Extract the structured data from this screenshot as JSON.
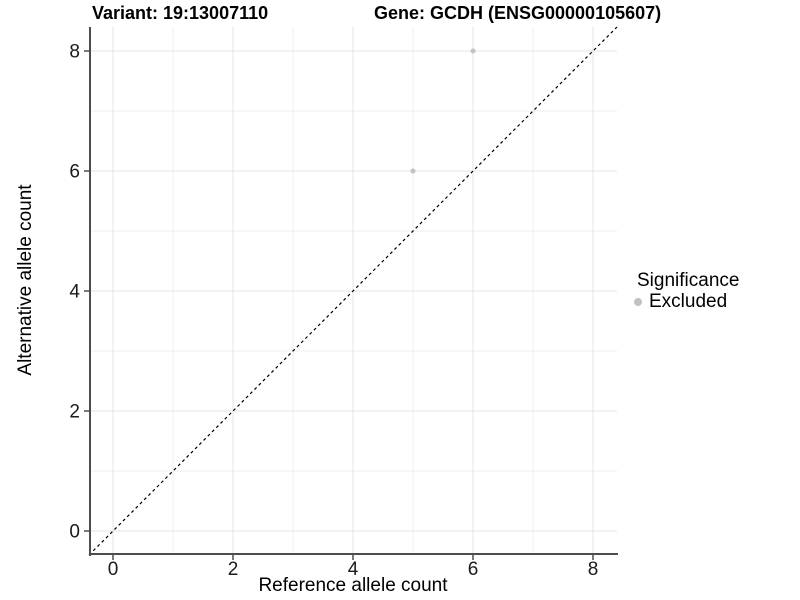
{
  "chart_data": {
    "type": "scatter",
    "title_left": "Variant: 19:13007110",
    "title_right": "Gene: GCDH (ENSG00000105607)",
    "xlabel": "Reference allele count",
    "ylabel": "Alternative allele count",
    "xlim": [
      -0.4,
      8.4
    ],
    "ylim": [
      -0.4,
      8.4
    ],
    "x_major_ticks": [
      0,
      2,
      4,
      6,
      8
    ],
    "y_major_ticks": [
      0,
      2,
      4,
      6,
      8
    ],
    "x_minor_ticks": [
      1,
      3,
      5,
      7
    ],
    "y_minor_ticks": [
      1,
      3,
      5,
      7
    ],
    "grid": true,
    "reference_line": {
      "type": "identity",
      "slope": 1,
      "intercept": 0,
      "style": "dashed"
    },
    "series": [
      {
        "name": "Excluded",
        "points": [
          {
            "x": 5,
            "y": 6
          },
          {
            "x": 6,
            "y": 8
          }
        ]
      }
    ],
    "legend": {
      "title": "Significance",
      "position": "right",
      "items": [
        {
          "label": "Excluded",
          "color": "#c2c2c2"
        }
      ]
    }
  },
  "colors": {
    "background": "#ffffff",
    "axis_line": "#4d4d4d",
    "tick_mark": "#4d4d4d",
    "grid_major": "#e4e4e4",
    "grid_minor": "#efefef",
    "tick_label": "#1a1a1a",
    "title_text": "#000000",
    "point_excluded": "#c2c2c2",
    "reference_line": "#000000"
  }
}
